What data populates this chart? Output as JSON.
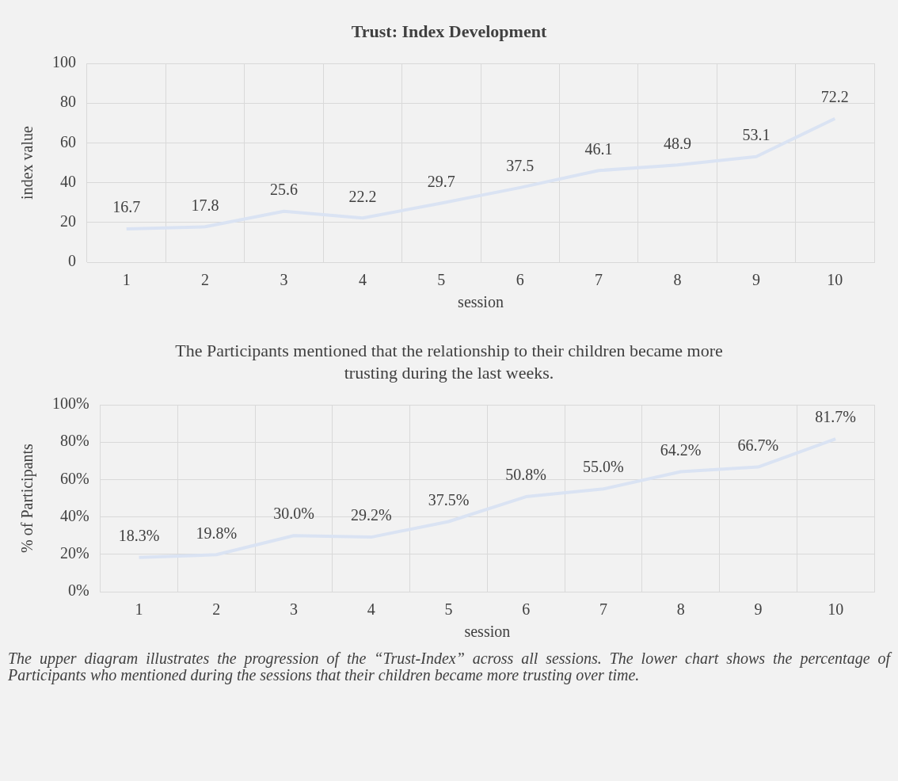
{
  "chart_data": [
    {
      "type": "line",
      "title": "Trust: Index Development",
      "xlabel": "session",
      "ylabel": "index value",
      "categories": [
        "1",
        "2",
        "3",
        "4",
        "5",
        "6",
        "7",
        "8",
        "9",
        "10"
      ],
      "series": [
        {
          "color": "#dae3f3",
          "values": [
            16.7,
            17.8,
            25.6,
            22.2,
            29.7,
            37.5,
            46.1,
            48.9,
            53.1,
            72.2
          ]
        }
      ],
      "ylim": [
        0,
        100
      ],
      "yticks": [
        0,
        20,
        40,
        60,
        80,
        100
      ],
      "grid": true,
      "data_labels": true
    },
    {
      "type": "line",
      "title": "The Participants mentioned that the relationship to their children became more trusting during the last weeks.",
      "xlabel": "session",
      "ylabel": "% of Participants",
      "categories": [
        "1",
        "2",
        "3",
        "4",
        "5",
        "6",
        "7",
        "8",
        "9",
        "10"
      ],
      "series": [
        {
          "color": "#dae3f3",
          "values": [
            18.3,
            19.8,
            30.0,
            29.2,
            37.5,
            50.8,
            55.0,
            64.2,
            66.7,
            81.7
          ],
          "value_labels": [
            "18.3%",
            "19.8%",
            "30.0%",
            "29.2%",
            "37.5%",
            "50.8%",
            "55.0%",
            "64.2%",
            "66.7%",
            "81.7%"
          ]
        }
      ],
      "ylim": [
        0,
        100
      ],
      "yticks": [
        {
          "value": 0,
          "label": "0%"
        },
        {
          "value": 20,
          "label": "20%"
        },
        {
          "value": 40,
          "label": "40%"
        },
        {
          "value": 60,
          "label": "60%"
        },
        {
          "value": 80,
          "label": "80%"
        },
        {
          "value": 100,
          "label": "100%"
        }
      ],
      "grid": true,
      "annotations": [
        "The upper diagram illustrates the progression of the “Trust-Index” across all sessions. The lower chart shows the percentage of Participants who mentioned during the sessions that their children became more trusting over time."
      ]
    }
  ]
}
